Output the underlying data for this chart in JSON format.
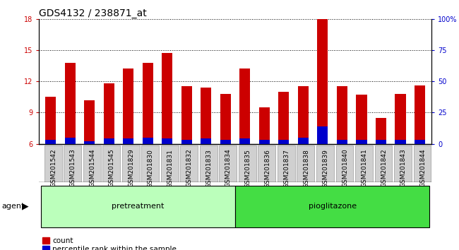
{
  "title": "GDS4132 / 238871_at",
  "categories": [
    "GSM201542",
    "GSM201543",
    "GSM201544",
    "GSM201545",
    "GSM201829",
    "GSM201830",
    "GSM201831",
    "GSM201832",
    "GSM201833",
    "GSM201834",
    "GSM201835",
    "GSM201836",
    "GSM201837",
    "GSM201838",
    "GSM201839",
    "GSM201840",
    "GSM201841",
    "GSM201842",
    "GSM201843",
    "GSM201844"
  ],
  "counts": [
    10.5,
    13.8,
    10.2,
    11.8,
    13.2,
    13.8,
    14.7,
    11.5,
    11.4,
    10.8,
    13.2,
    9.5,
    11.0,
    11.5,
    18.0,
    11.5,
    10.7,
    8.5,
    10.8,
    11.6
  ],
  "percentile": [
    3,
    5,
    2,
    4,
    4,
    5,
    4,
    3,
    4,
    3,
    4,
    3,
    3,
    5,
    14,
    3,
    3,
    3,
    3,
    3
  ],
  "ylim_left": [
    6,
    18
  ],
  "ylim_right": [
    0,
    100
  ],
  "yticks_left": [
    6,
    9,
    12,
    15,
    18
  ],
  "yticks_right": [
    0,
    25,
    50,
    75,
    100
  ],
  "count_color": "#cc0000",
  "percentile_color": "#0000cc",
  "bar_width": 0.55,
  "pretreatment_label": "pretreatment",
  "pioglitazone_label": "pioglitazone",
  "pretreatment_color": "#bbffbb",
  "pioglitazone_color": "#44dd44",
  "agent_label": "agent",
  "legend_count_label": "count",
  "legend_percentile_label": "percentile rank within the sample",
  "plot_bg": "#ffffff",
  "title_fontsize": 10,
  "tick_fontsize": 7,
  "bar_bottom": 6,
  "xlabel_bg": "#d0d0d0"
}
